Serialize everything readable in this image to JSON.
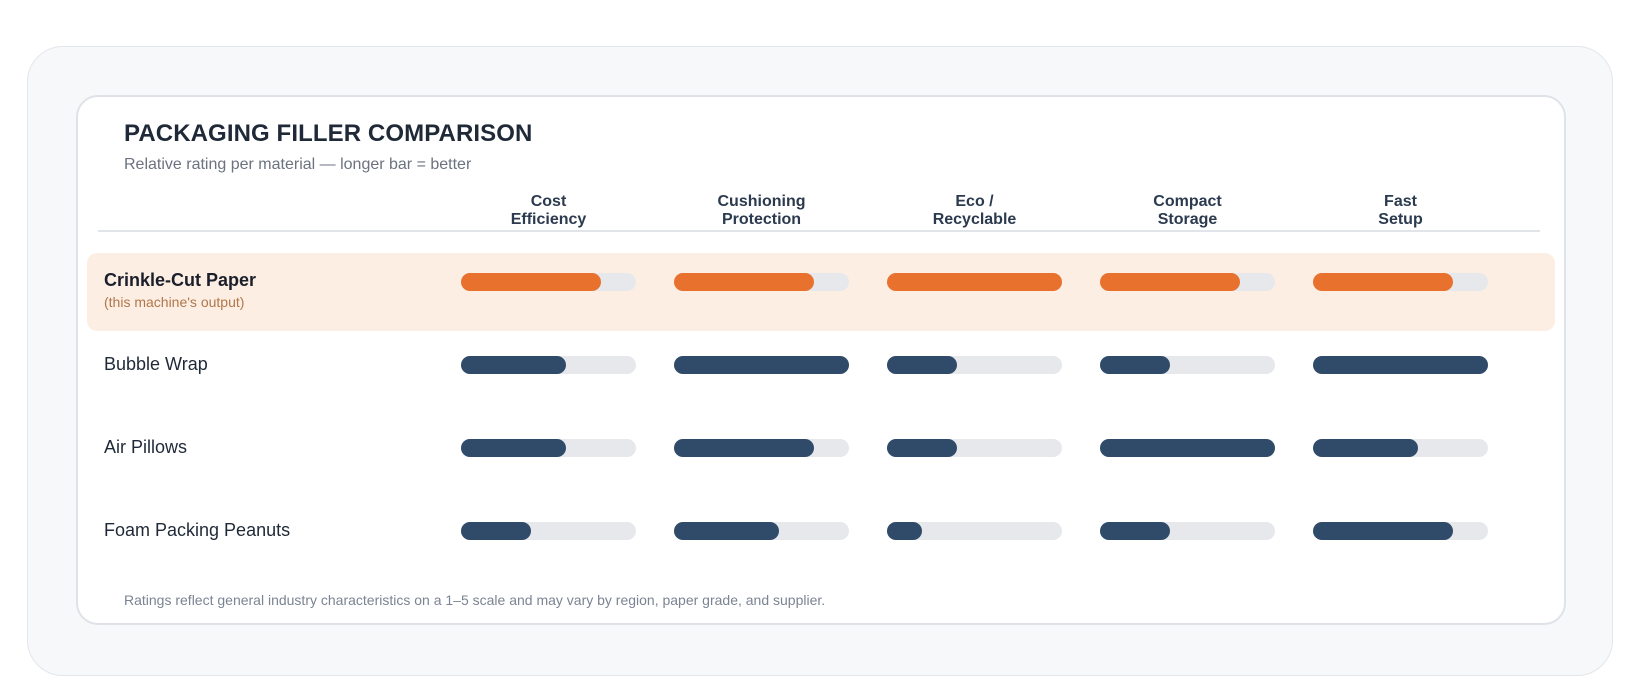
{
  "colors": {
    "highlight": "#e8712e",
    "standard": "#304a69",
    "track": "#e6e8ec"
  },
  "chart_data": {
    "type": "bar",
    "title": "PACKAGING FILLER COMPARISON",
    "subtitle": "Relative rating per material — longer bar = better",
    "footnote": "Ratings reflect general industry characteristics on a 1–5 scale and may vary by region, paper grade, and supplier.",
    "scale_max": 5,
    "columns": [
      {
        "line1": "Cost",
        "line2": "Efficiency"
      },
      {
        "line1": "Cushioning",
        "line2": "Protection"
      },
      {
        "line1": "Eco /",
        "line2": "Recyclable"
      },
      {
        "line1": "Compact",
        "line2": "Storage"
      },
      {
        "line1": "Fast",
        "line2": "Setup"
      }
    ],
    "rows": [
      {
        "name": "Crinkle-Cut Paper",
        "note": "(this machine's output)",
        "highlight": true,
        "values": [
          4,
          4,
          5,
          4,
          4
        ]
      },
      {
        "name": "Bubble Wrap",
        "note": "",
        "highlight": false,
        "values": [
          3,
          5,
          2,
          2,
          5
        ]
      },
      {
        "name": "Air Pillows",
        "note": "",
        "highlight": false,
        "values": [
          3,
          4,
          2,
          5,
          3
        ]
      },
      {
        "name": "Foam Packing Peanuts",
        "note": "",
        "highlight": false,
        "values": [
          2,
          3,
          1,
          2,
          4
        ]
      }
    ]
  }
}
